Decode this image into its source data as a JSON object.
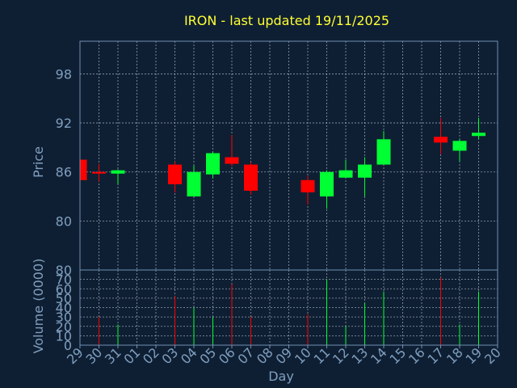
{
  "chart_data": {
    "type": "candlestick",
    "title": "IRON - last updated 19/11/2025",
    "xlabel": "Day",
    "price_panel": {
      "ylabel": "Price",
      "ylim": [
        74,
        102
      ],
      "yticks": [
        80,
        86,
        92,
        98
      ],
      "grid": true
    },
    "volume_panel": {
      "ylabel": "Volume (0000)",
      "ylim": [
        0,
        80
      ],
      "yticks": [
        0,
        10,
        20,
        30,
        40,
        50,
        60,
        70,
        80
      ],
      "grid": true
    },
    "days": [
      "29",
      "30",
      "31",
      "01",
      "02",
      "03",
      "04",
      "05",
      "06",
      "07",
      "08",
      "09",
      "10",
      "11",
      "12",
      "13",
      "14",
      "15",
      "16",
      "17",
      "18",
      "19",
      "20"
    ],
    "colors": {
      "up": "#00ff33",
      "down": "#ff0000",
      "background": "#0f1f33",
      "title": "#ffff33",
      "axis": "#7f9fbf"
    },
    "candles": [
      {
        "day": "29",
        "open": 87.5,
        "high": 87.5,
        "low": 85.0,
        "close": 85.0,
        "volume": 0
      },
      {
        "day": "30",
        "open": 86.0,
        "high": 87.0,
        "low": 84.8,
        "close": 85.8,
        "volume": 30
      },
      {
        "day": "31",
        "open": 85.8,
        "high": 86.3,
        "low": 84.5,
        "close": 86.2,
        "volume": 22
      },
      {
        "day": "03",
        "open": 86.9,
        "high": 87.3,
        "low": 83.5,
        "close": 84.5,
        "volume": 52
      },
      {
        "day": "04",
        "open": 83.0,
        "high": 86.8,
        "low": 83.0,
        "close": 86.0,
        "volume": 40
      },
      {
        "day": "05",
        "open": 85.7,
        "high": 88.5,
        "low": 85.2,
        "close": 88.3,
        "volume": 30
      },
      {
        "day": "06",
        "open": 87.8,
        "high": 90.5,
        "low": 86.7,
        "close": 87.0,
        "volume": 65
      },
      {
        "day": "07",
        "open": 86.9,
        "high": 87.2,
        "low": 83.2,
        "close": 83.7,
        "volume": 30
      },
      {
        "day": "10",
        "open": 85.0,
        "high": 85.5,
        "low": 82.0,
        "close": 83.5,
        "volume": 33
      },
      {
        "day": "11",
        "open": 83.0,
        "high": 86.2,
        "low": 81.5,
        "close": 86.0,
        "volume": 70
      },
      {
        "day": "12",
        "open": 85.3,
        "high": 87.5,
        "low": 85.3,
        "close": 86.2,
        "volume": 20
      },
      {
        "day": "13",
        "open": 85.3,
        "high": 87.8,
        "low": 83.0,
        "close": 86.9,
        "volume": 45
      },
      {
        "day": "14",
        "open": 86.9,
        "high": 91.0,
        "low": 86.9,
        "close": 90.0,
        "volume": 57
      },
      {
        "day": "17",
        "open": 90.3,
        "high": 92.6,
        "low": 88.2,
        "close": 89.6,
        "volume": 72
      },
      {
        "day": "18",
        "open": 88.6,
        "high": 90.0,
        "low": 87.3,
        "close": 89.8,
        "volume": 22
      },
      {
        "day": "19",
        "open": 90.4,
        "high": 92.6,
        "low": 90.0,
        "close": 90.8,
        "volume": 57
      }
    ]
  }
}
